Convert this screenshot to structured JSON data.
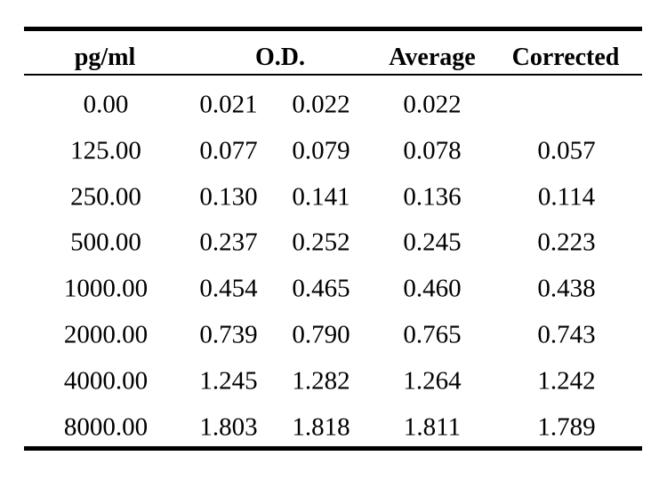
{
  "table": {
    "headers": {
      "pgml": "pg/ml",
      "od": "O.D.",
      "average": "Average",
      "corrected": "Corrected"
    },
    "rows": [
      {
        "pgml": "0.00",
        "od1": "0.021",
        "od2": "0.022",
        "average": "0.022",
        "corrected": ""
      },
      {
        "pgml": "125.00",
        "od1": "0.077",
        "od2": "0.079",
        "average": "0.078",
        "corrected": "0.057"
      },
      {
        "pgml": "250.00",
        "od1": "0.130",
        "od2": "0.141",
        "average": "0.136",
        "corrected": "0.114"
      },
      {
        "pgml": "500.00",
        "od1": "0.237",
        "od2": "0.252",
        "average": "0.245",
        "corrected": "0.223"
      },
      {
        "pgml": "1000.00",
        "od1": "0.454",
        "od2": "0.465",
        "average": "0.460",
        "corrected": "0.438"
      },
      {
        "pgml": "2000.00",
        "od1": "0.739",
        "od2": "0.790",
        "average": "0.765",
        "corrected": "0.743"
      },
      {
        "pgml": "4000.00",
        "od1": "1.245",
        "od2": "1.282",
        "average": "1.264",
        "corrected": "1.242"
      },
      {
        "pgml": "8000.00",
        "od1": "1.803",
        "od2": "1.818",
        "average": "1.811",
        "corrected": "1.789"
      }
    ]
  }
}
